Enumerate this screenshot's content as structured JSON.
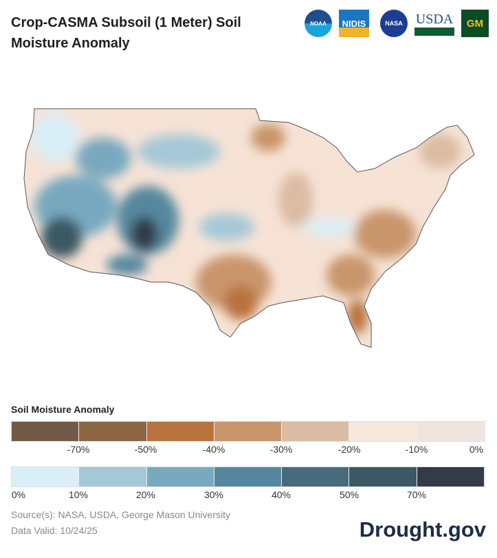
{
  "title": "Crop-CASMA Subsoil (1 Meter) Soil Moisture Anomaly",
  "logos": [
    {
      "name": "noaa",
      "text": "NOAA"
    },
    {
      "name": "nidis",
      "text": "NIDIS"
    },
    {
      "name": "nasa",
      "text": "NASA"
    },
    {
      "name": "usda",
      "text": "USDA"
    },
    {
      "name": "gmu",
      "text": "GM"
    }
  ],
  "legend": {
    "title": "Soil Moisture Anomaly",
    "dry_colors": [
      "#725a48",
      "#8c6542",
      "#b9723e",
      "#c9956b",
      "#dbbba3",
      "#f6e7dd",
      "#f0e4df"
    ],
    "dry_labels": [
      "-70%",
      "-50%",
      "-40%",
      "-30%",
      "-20%",
      "-10%",
      "0%"
    ],
    "wet_colors": [
      "#d9eff7",
      "#a5c8d7",
      "#78a9bf",
      "#55889e",
      "#486b7c",
      "#3b5964",
      "#333a48"
    ],
    "wet_labels": [
      "0%",
      "10%",
      "20%",
      "30%",
      "40%",
      "50%",
      "70%"
    ]
  },
  "source": "Source(s): NASA, USDA, George Mason University",
  "valid": "Data Valid: 10/24/25",
  "brand": "Drought.gov"
}
